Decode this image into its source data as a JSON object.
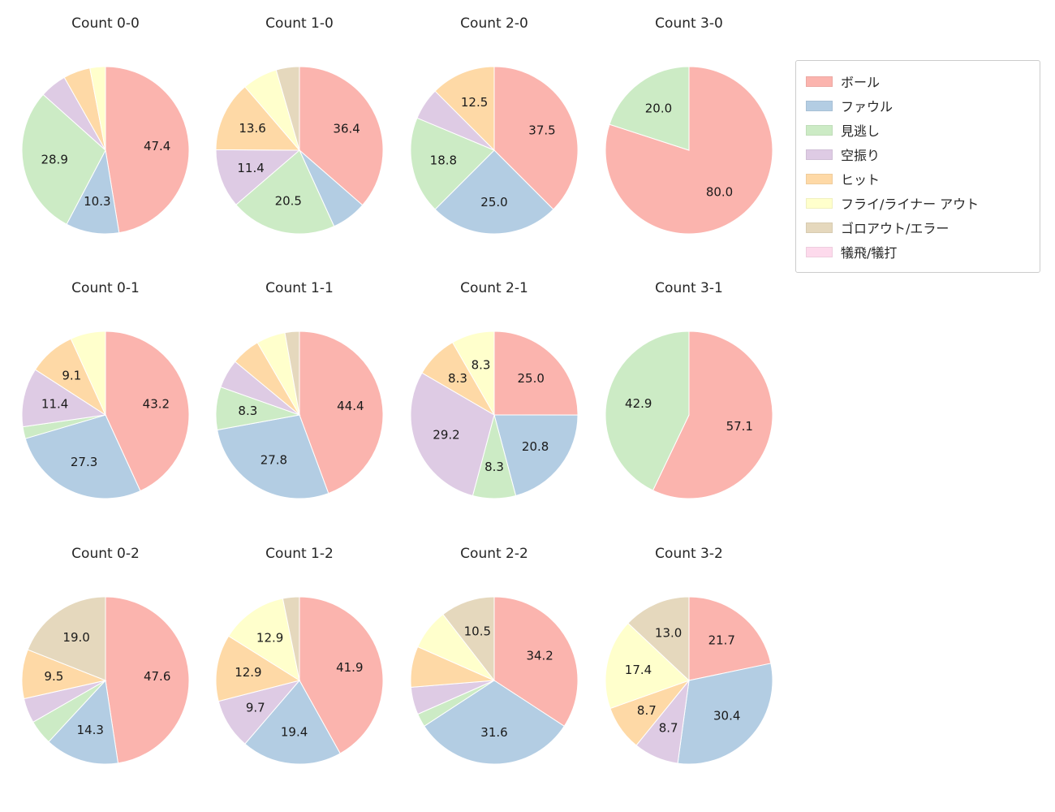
{
  "chart_data": {
    "type": "pie",
    "layout_hint": "grid of 12 pie subplots (3 rows x 4 columns), legend box top-right, white background, slices clockwise from 12 o'clock in legend order",
    "legend": {
      "position": "top-right",
      "entries": [
        {
          "label": "ボール",
          "color": "#fbb4ae"
        },
        {
          "label": "ファウル",
          "color": "#b3cde3"
        },
        {
          "label": "見逃し",
          "color": "#ccebc5"
        },
        {
          "label": "空振り",
          "color": "#decbe4"
        },
        {
          "label": "ヒット",
          "color": "#fed9a6"
        },
        {
          "label": "フライ/ライナー アウト",
          "color": "#ffffcc"
        },
        {
          "label": "ゴロアウト/エラー",
          "color": "#e5d8bd"
        },
        {
          "label": "犠飛/犠打",
          "color": "#fddaec"
        }
      ]
    },
    "charts": [
      {
        "title": "Count 0-0",
        "slices": [
          {
            "category": "ボール",
            "value": 47.4,
            "label": "47.4"
          },
          {
            "category": "ファウル",
            "value": 10.3,
            "label": "10.3"
          },
          {
            "category": "見逃し",
            "value": 28.9,
            "label": "28.9"
          },
          {
            "category": "空振り",
            "value": 5.2,
            "label": ""
          },
          {
            "category": "ヒット",
            "value": 5.2,
            "label": ""
          },
          {
            "category": "フライ/ライナー アウト",
            "value": 3.0,
            "label": ""
          }
        ]
      },
      {
        "title": "Count 1-0",
        "slices": [
          {
            "category": "ボール",
            "value": 36.4,
            "label": "36.4"
          },
          {
            "category": "ファウル",
            "value": 6.8,
            "label": ""
          },
          {
            "category": "見逃し",
            "value": 20.5,
            "label": "20.5"
          },
          {
            "category": "空振り",
            "value": 11.4,
            "label": "11.4"
          },
          {
            "category": "ヒット",
            "value": 13.6,
            "label": "13.6"
          },
          {
            "category": "フライ/ライナー アウト",
            "value": 6.8,
            "label": ""
          },
          {
            "category": "ゴロアウト/エラー",
            "value": 4.5,
            "label": ""
          }
        ]
      },
      {
        "title": "Count 2-0",
        "slices": [
          {
            "category": "ボール",
            "value": 37.5,
            "label": "37.5"
          },
          {
            "category": "ファウル",
            "value": 25.0,
            "label": "25.0"
          },
          {
            "category": "見逃し",
            "value": 18.8,
            "label": "18.8"
          },
          {
            "category": "空振り",
            "value": 6.2,
            "label": ""
          },
          {
            "category": "ヒット",
            "value": 12.5,
            "label": "12.5"
          }
        ]
      },
      {
        "title": "Count 3-0",
        "slices": [
          {
            "category": "ボール",
            "value": 80.0,
            "label": "80.0"
          },
          {
            "category": "見逃し",
            "value": 20.0,
            "label": "20.0"
          }
        ]
      },
      {
        "title": "Count 0-1",
        "slices": [
          {
            "category": "ボール",
            "value": 43.2,
            "label": "43.2"
          },
          {
            "category": "ファウル",
            "value": 27.3,
            "label": "27.3"
          },
          {
            "category": "見逃し",
            "value": 2.3,
            "label": ""
          },
          {
            "category": "空振り",
            "value": 11.4,
            "label": "11.4"
          },
          {
            "category": "ヒット",
            "value": 9.1,
            "label": "9.1"
          },
          {
            "category": "フライ/ライナー アウト",
            "value": 6.8,
            "label": ""
          }
        ]
      },
      {
        "title": "Count 1-1",
        "slices": [
          {
            "category": "ボール",
            "value": 44.4,
            "label": "44.4"
          },
          {
            "category": "ファウル",
            "value": 27.8,
            "label": "27.8"
          },
          {
            "category": "見逃し",
            "value": 8.3,
            "label": "8.3"
          },
          {
            "category": "空振り",
            "value": 5.6,
            "label": ""
          },
          {
            "category": "ヒット",
            "value": 5.6,
            "label": ""
          },
          {
            "category": "フライ/ライナー アウト",
            "value": 5.6,
            "label": ""
          },
          {
            "category": "ゴロアウト/エラー",
            "value": 2.8,
            "label": ""
          }
        ]
      },
      {
        "title": "Count 2-1",
        "slices": [
          {
            "category": "ボール",
            "value": 25.0,
            "label": "25.0"
          },
          {
            "category": "ファウル",
            "value": 20.8,
            "label": "20.8"
          },
          {
            "category": "見逃し",
            "value": 8.3,
            "label": "8.3"
          },
          {
            "category": "空振り",
            "value": 29.2,
            "label": "29.2"
          },
          {
            "category": "ヒット",
            "value": 8.3,
            "label": "8.3"
          },
          {
            "category": "フライ/ライナー アウト",
            "value": 8.3,
            "label": "8.3"
          }
        ]
      },
      {
        "title": "Count 3-1",
        "slices": [
          {
            "category": "ボール",
            "value": 57.1,
            "label": "57.1"
          },
          {
            "category": "見逃し",
            "value": 42.9,
            "label": "42.9"
          }
        ]
      },
      {
        "title": "Count 0-2",
        "slices": [
          {
            "category": "ボール",
            "value": 47.6,
            "label": "47.6"
          },
          {
            "category": "ファウル",
            "value": 14.3,
            "label": "14.3"
          },
          {
            "category": "見逃し",
            "value": 4.8,
            "label": ""
          },
          {
            "category": "空振り",
            "value": 4.8,
            "label": ""
          },
          {
            "category": "ヒット",
            "value": 9.5,
            "label": "9.5"
          },
          {
            "category": "ゴロアウト/エラー",
            "value": 19.0,
            "label": "19.0"
          }
        ]
      },
      {
        "title": "Count 1-2",
        "slices": [
          {
            "category": "ボール",
            "value": 41.9,
            "label": "41.9"
          },
          {
            "category": "ファウル",
            "value": 19.4,
            "label": "19.4"
          },
          {
            "category": "空振り",
            "value": 9.7,
            "label": "9.7"
          },
          {
            "category": "ヒット",
            "value": 12.9,
            "label": "12.9"
          },
          {
            "category": "フライ/ライナー アウト",
            "value": 12.9,
            "label": "12.9"
          },
          {
            "category": "ゴロアウト/エラー",
            "value": 3.2,
            "label": ""
          }
        ]
      },
      {
        "title": "Count 2-2",
        "slices": [
          {
            "category": "ボール",
            "value": 34.2,
            "label": "34.2"
          },
          {
            "category": "ファウル",
            "value": 31.6,
            "label": "31.6"
          },
          {
            "category": "見逃し",
            "value": 2.6,
            "label": ""
          },
          {
            "category": "空振り",
            "value": 5.3,
            "label": ""
          },
          {
            "category": "ヒット",
            "value": 7.9,
            "label": ""
          },
          {
            "category": "フライ/ライナー アウト",
            "value": 7.9,
            "label": ""
          },
          {
            "category": "ゴロアウト/エラー",
            "value": 10.5,
            "label": "10.5"
          }
        ]
      },
      {
        "title": "Count 3-2",
        "slices": [
          {
            "category": "ボール",
            "value": 21.7,
            "label": "21.7"
          },
          {
            "category": "ファウル",
            "value": 30.4,
            "label": "30.4"
          },
          {
            "category": "空振り",
            "value": 8.7,
            "label": "8.7"
          },
          {
            "category": "ヒット",
            "value": 8.7,
            "label": "8.7"
          },
          {
            "category": "フライ/ライナー アウト",
            "value": 17.4,
            "label": "17.4"
          },
          {
            "category": "ゴロアウト/エラー",
            "value": 13.0,
            "label": "13.0"
          }
        ]
      }
    ]
  }
}
